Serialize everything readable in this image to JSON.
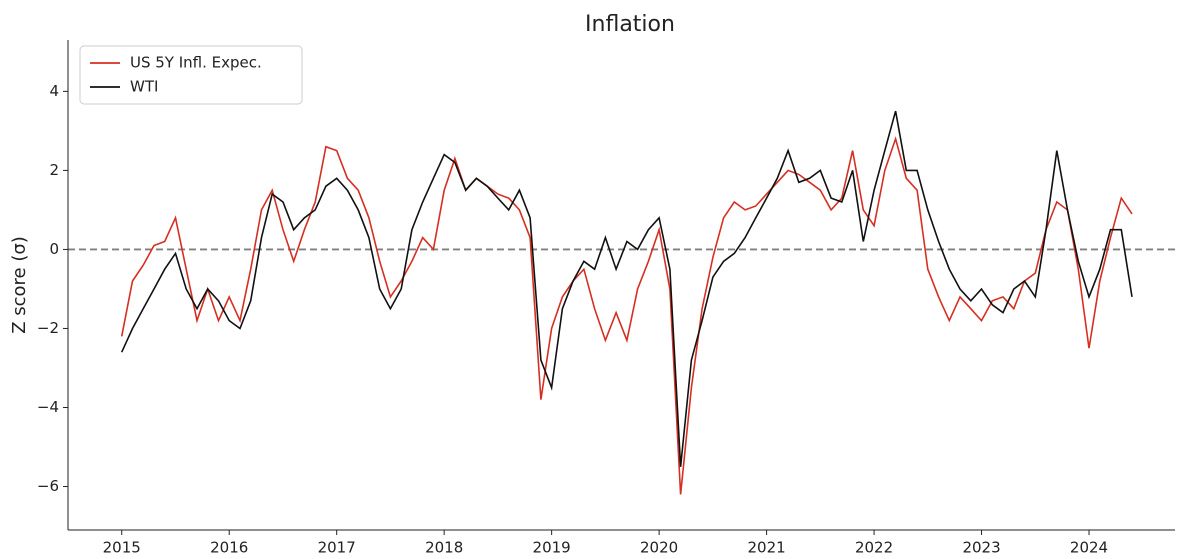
{
  "chart_data": {
    "type": "line",
    "title": "Inflation",
    "ylabel": "Z score (σ)",
    "x": [
      2015.0,
      2015.1,
      2015.2,
      2015.3,
      2015.4,
      2015.5,
      2015.6,
      2015.7,
      2015.8,
      2015.9,
      2016.0,
      2016.1,
      2016.2,
      2016.3,
      2016.4,
      2016.5,
      2016.6,
      2016.7,
      2016.8,
      2016.9,
      2017.0,
      2017.1,
      2017.2,
      2017.3,
      2017.4,
      2017.5,
      2017.6,
      2017.7,
      2017.8,
      2017.9,
      2018.0,
      2018.1,
      2018.2,
      2018.3,
      2018.4,
      2018.5,
      2018.6,
      2018.7,
      2018.8,
      2018.9,
      2019.0,
      2019.1,
      2019.2,
      2019.3,
      2019.4,
      2019.5,
      2019.6,
      2019.7,
      2019.8,
      2019.9,
      2020.0,
      2020.1,
      2020.2,
      2020.3,
      2020.4,
      2020.5,
      2020.6,
      2020.7,
      2020.8,
      2020.9,
      2021.0,
      2021.1,
      2021.2,
      2021.3,
      2021.4,
      2021.5,
      2021.6,
      2021.7,
      2021.8,
      2021.9,
      2022.0,
      2022.1,
      2022.2,
      2022.3,
      2022.4,
      2022.5,
      2022.6,
      2022.7,
      2022.8,
      2022.9,
      2023.0,
      2023.1,
      2023.2,
      2023.3,
      2023.4,
      2023.5,
      2023.6,
      2023.7,
      2023.8,
      2023.9,
      2024.0,
      2024.1,
      2024.2,
      2024.3,
      2024.4
    ],
    "series": [
      {
        "name": "US 5Y Infl. Expec.",
        "color": "#d62f22",
        "values": [
          -2.2,
          -0.8,
          -0.4,
          0.1,
          0.2,
          0.8,
          -0.5,
          -1.8,
          -1.0,
          -1.8,
          -1.2,
          -1.8,
          -0.5,
          1.0,
          1.5,
          0.5,
          -0.3,
          0.5,
          1.2,
          2.6,
          2.5,
          1.8,
          1.5,
          0.8,
          -0.3,
          -1.2,
          -0.8,
          -0.3,
          0.3,
          0.0,
          1.5,
          2.3,
          1.5,
          1.8,
          1.6,
          1.4,
          1.3,
          1.0,
          0.3,
          -3.8,
          -2.0,
          -1.2,
          -0.8,
          -0.5,
          -1.5,
          -2.3,
          -1.6,
          -2.3,
          -1.0,
          -0.3,
          0.5,
          -1.0,
          -6.2,
          -3.5,
          -1.5,
          -0.2,
          0.8,
          1.2,
          1.0,
          1.1,
          1.4,
          1.7,
          2.0,
          1.9,
          1.7,
          1.5,
          1.0,
          1.3,
          2.5,
          1.0,
          0.6,
          2.0,
          2.8,
          1.8,
          1.5,
          -0.5,
          -1.2,
          -1.8,
          -1.2,
          -1.5,
          -1.8,
          -1.3,
          -1.2,
          -1.5,
          -0.8,
          -0.6,
          0.5,
          1.2,
          1.0,
          -0.5,
          -2.5,
          -0.8,
          0.3,
          1.3,
          0.9
        ]
      },
      {
        "name": "WTI",
        "color": "#111111",
        "values": [
          -2.6,
          -2.0,
          -1.5,
          -1.0,
          -0.5,
          -0.1,
          -1.0,
          -1.5,
          -1.0,
          -1.3,
          -1.8,
          -2.0,
          -1.3,
          0.3,
          1.4,
          1.2,
          0.5,
          0.8,
          1.0,
          1.6,
          1.8,
          1.5,
          1.0,
          0.3,
          -1.0,
          -1.5,
          -1.0,
          0.5,
          1.2,
          1.8,
          2.4,
          2.2,
          1.5,
          1.8,
          1.6,
          1.3,
          1.0,
          1.5,
          0.8,
          -2.8,
          -3.5,
          -1.5,
          -0.8,
          -0.3,
          -0.5,
          0.3,
          -0.5,
          0.2,
          0.0,
          0.5,
          0.8,
          -0.5,
          -5.5,
          -2.8,
          -1.8,
          -0.7,
          -0.3,
          -0.1,
          0.3,
          0.8,
          1.3,
          1.8,
          2.5,
          1.7,
          1.8,
          2.0,
          1.3,
          1.2,
          2.0,
          0.2,
          1.5,
          2.5,
          3.5,
          2.0,
          2.0,
          1.0,
          0.2,
          -0.5,
          -1.0,
          -1.3,
          -1.0,
          -1.4,
          -1.6,
          -1.0,
          -0.8,
          -1.2,
          0.5,
          2.5,
          1.0,
          -0.3,
          -1.2,
          -0.5,
          0.5,
          0.5,
          -1.2
        ]
      }
    ],
    "xlim": [
      2014.5,
      2024.8
    ],
    "xticks": [
      2015,
      2016,
      2017,
      2018,
      2019,
      2020,
      2021,
      2022,
      2023,
      2024
    ],
    "ylim": [
      -7.1,
      5.3
    ],
    "yticks": [
      {
        "value": -6,
        "label": "−6"
      },
      {
        "value": -4,
        "label": "−4"
      },
      {
        "value": -2,
        "label": "−2"
      },
      0,
      2,
      4
    ],
    "hline": {
      "value": 0,
      "color": "#808080",
      "style": "dashed"
    },
    "legend": "upper left"
  }
}
